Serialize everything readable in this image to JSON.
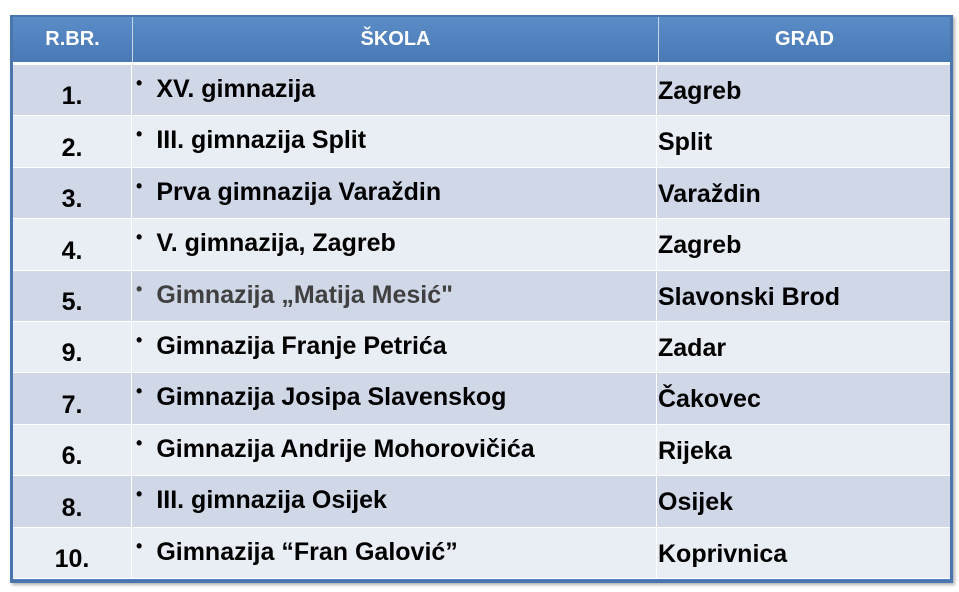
{
  "table": {
    "headers": [
      "R.BR.",
      "ŠKOLA",
      "GRAD"
    ],
    "rows": [
      {
        "num": "1.",
        "school": "XV. gimnazija",
        "city": "Zagreb"
      },
      {
        "num": "2.",
        "school": "III. gimnazija Split",
        "city": "Split"
      },
      {
        "num": "3.",
        "school": "Prva gimnazija Varaždin",
        "city": "Varaždin"
      },
      {
        "num": "4.",
        "school": "V. gimnazija, Zagreb",
        "city": "Zagreb"
      },
      {
        "num": "5.",
        "school": "Gimnazija „Matija Mesić\"",
        "city": "Slavonski Brod"
      },
      {
        "num": "9.",
        "school": "Gimnazija Franje Petrića",
        "city": "Zadar"
      },
      {
        "num": "7.",
        "school": "Gimnazija Josipa Slavenskog",
        "city": "Čakovec"
      },
      {
        "num": "6.",
        "school": "Gimnazija Andrije Mohorovičića",
        "city": "Rijeka"
      },
      {
        "num": "8.",
        "school": "III. gimnazija Osijek",
        "city": "Osijek"
      },
      {
        "num": "10.",
        "school": "Gimnazija “Fran Galović”",
        "city": "Koprivnica"
      }
    ],
    "bullet": "•",
    "colors": {
      "header": "#4f81bd",
      "row_odd": "#d0d8e8",
      "row_even": "#e9edf4"
    }
  }
}
